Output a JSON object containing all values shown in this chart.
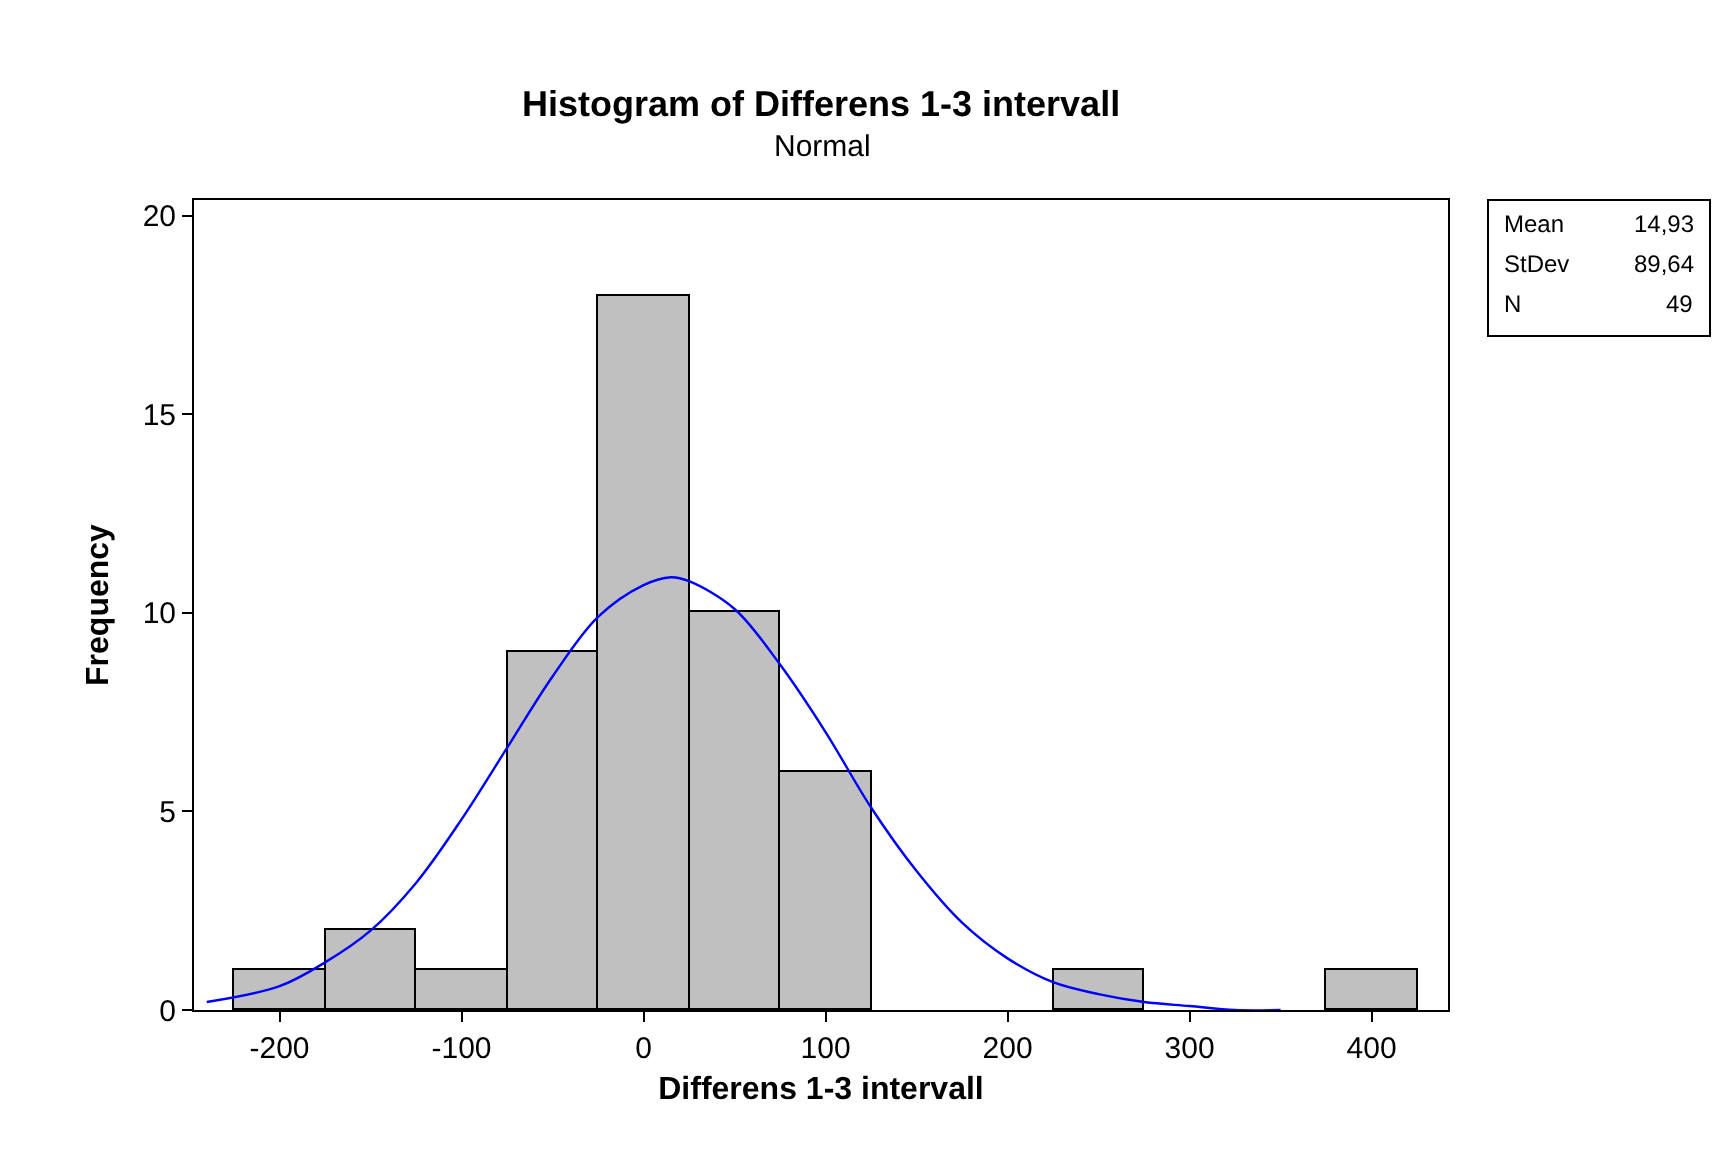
{
  "chart_data": {
    "type": "histogram",
    "title": "Histogram of Differens 1-3 intervall",
    "subtitle": "Normal",
    "xlabel": "Differens 1-3 intervall",
    "ylabel": "Frequency",
    "bins": [
      -225,
      -175,
      -125,
      -75,
      -25,
      25,
      75,
      125,
      175,
      225,
      275,
      325,
      375,
      425
    ],
    "values": [
      1,
      2,
      1,
      9,
      18,
      10,
      6,
      0,
      0,
      1,
      0,
      0,
      1
    ],
    "color": "#c0c0c0",
    "series": [
      {
        "type": "line",
        "color": "#0000ff",
        "x": [
          -240,
          -200,
          -175,
          -150,
          -125,
          -100,
          -75,
          -50,
          -25,
          0,
          15,
          25,
          50,
          75,
          100,
          125,
          150,
          175,
          200,
          225,
          250,
          275,
          300,
          325,
          350
        ],
        "values": [
          0.2,
          0.6,
          1.2,
          2.0,
          3.2,
          4.8,
          6.6,
          8.4,
          9.9,
          10.7,
          10.9,
          10.8,
          10.1,
          8.7,
          7.0,
          5.1,
          3.5,
          2.2,
          1.3,
          0.7,
          0.4,
          0.2,
          0.1,
          0.0,
          0.0
        ]
      }
    ],
    "xlim": [
      -247,
      442
    ],
    "ylim": [
      0,
      20.4
    ],
    "xticks": [
      -200,
      -100,
      0,
      100,
      200,
      300,
      400
    ],
    "yticks": [
      0,
      5,
      10,
      15,
      20
    ],
    "annotations": [
      "Mean",
      "14,93",
      "StDev",
      "89,64",
      "N",
      "49"
    ]
  }
}
